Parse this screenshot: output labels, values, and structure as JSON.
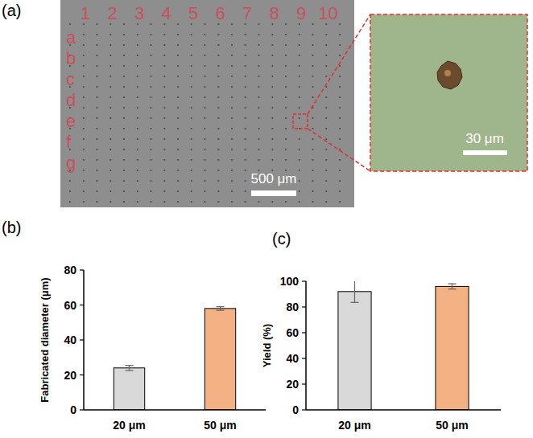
{
  "image_panel": {
    "panel_label": "(a)",
    "column_labels": [
      "1",
      "2",
      "3",
      "4",
      "5",
      "6",
      "7",
      "8",
      "9",
      "10"
    ],
    "row_labels": [
      "a",
      "b",
      "c",
      "d",
      "e",
      "f",
      "g"
    ],
    "scale_bar": "500 μm",
    "inset_scale_bar": "30 μm"
  },
  "chart_data": [
    {
      "type": "bar",
      "panel_label": "(b)",
      "y_label": "Fabricated diameter (μm)",
      "categories": [
        "20 μm",
        "50 μm"
      ],
      "values": [
        24,
        58
      ],
      "errors": [
        1.5,
        1
      ],
      "colors": [
        "#d9d9d9",
        "#f4b183"
      ],
      "ylim": [
        0,
        80
      ],
      "yticks": [
        0,
        20,
        40,
        60,
        80
      ]
    },
    {
      "type": "bar",
      "panel_label": "(c)",
      "y_label": "Yield (%)",
      "categories": [
        "20 μm",
        "50 μm"
      ],
      "values": [
        92,
        96
      ],
      "errors": [
        8.5,
        2
      ],
      "colors": [
        "#d9d9d9",
        "#f4b183"
      ],
      "ylim": [
        0,
        100
      ],
      "yticks": [
        0,
        20,
        40,
        60,
        80,
        100
      ]
    }
  ]
}
